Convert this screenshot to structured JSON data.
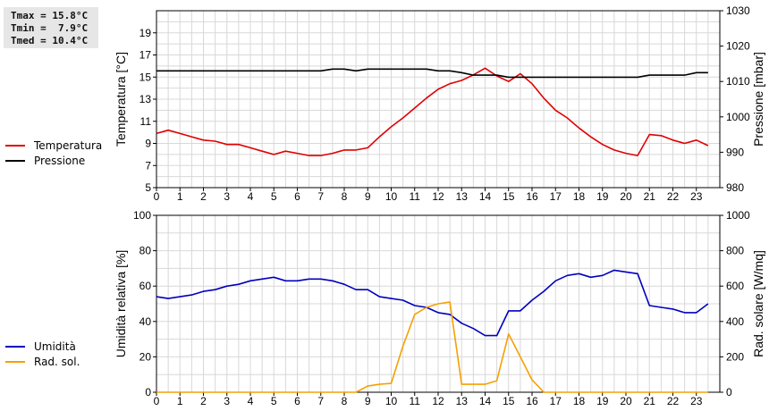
{
  "stats": {
    "tmax": "Tmax = 15.8°C",
    "tmin": "Tmin =  7.9°C",
    "tmed": "Tmed = 10.4°C"
  },
  "colors": {
    "temperature": "#e00000",
    "pressure": "#000000",
    "humidity": "#0000c0",
    "solar": "#f5a000",
    "grid": "#d8d8d8"
  },
  "chart_data": [
    {
      "type": "line",
      "title": "",
      "xlabel": "",
      "xlim": [
        0,
        24
      ],
      "xticks": [
        0,
        1,
        2,
        3,
        4,
        5,
        6,
        7,
        8,
        9,
        10,
        11,
        12,
        13,
        14,
        15,
        16,
        17,
        18,
        19,
        20,
        21,
        22,
        23
      ],
      "ylabel_left": "Temperatura [°C]",
      "ylim_left": [
        5,
        21
      ],
      "yticks_left": [
        5,
        7,
        9,
        11,
        13,
        15,
        17,
        19
      ],
      "ylabel_right": "Pressione [mbar]",
      "ylim_right": [
        980,
        1030
      ],
      "yticks_right": [
        980,
        990,
        1000,
        1010,
        1020,
        1030
      ],
      "grid": true,
      "legend_placement": "left",
      "series": [
        {
          "name": "Temperatura",
          "axis": "left",
          "x": [
            0,
            0.5,
            1,
            1.5,
            2,
            2.5,
            3,
            3.5,
            4,
            4.5,
            5,
            5.5,
            6,
            6.5,
            7,
            7.5,
            8,
            8.5,
            9,
            9.5,
            10,
            10.5,
            11,
            11.5,
            12,
            12.5,
            13,
            13.5,
            14,
            14.5,
            15,
            15.5,
            16,
            16.5,
            17,
            17.5,
            18,
            18.5,
            19,
            19.5,
            20,
            20.5,
            21,
            21.5,
            22,
            22.5,
            23,
            23.5
          ],
          "values": [
            9.9,
            10.2,
            9.9,
            9.6,
            9.3,
            9.2,
            8.9,
            8.9,
            8.6,
            8.3,
            8.0,
            8.3,
            8.1,
            7.9,
            7.9,
            8.1,
            8.4,
            8.4,
            8.6,
            9.6,
            10.5,
            11.3,
            12.2,
            13.1,
            13.9,
            14.4,
            14.7,
            15.2,
            15.8,
            15.1,
            14.6,
            15.3,
            14.4,
            13.1,
            12.0,
            11.3,
            10.4,
            9.6,
            8.9,
            8.4,
            8.1,
            7.9,
            9.8,
            9.7,
            9.3,
            9.0,
            9.3,
            8.8
          ]
        },
        {
          "name": "Pressione",
          "axis": "right",
          "x": [
            0,
            0.5,
            1,
            1.5,
            2,
            2.5,
            3,
            3.5,
            4,
            4.5,
            5,
            5.5,
            6,
            6.5,
            7,
            7.5,
            8,
            8.5,
            9,
            9.5,
            10,
            10.5,
            11,
            11.5,
            12,
            12.5,
            13,
            13.5,
            14,
            14.5,
            15,
            15.5,
            16,
            16.5,
            17,
            17.5,
            18,
            18.5,
            19,
            19.5,
            20,
            20.5,
            21,
            21.5,
            22,
            22.5,
            23,
            23.5
          ],
          "values": [
            1013,
            1013,
            1013,
            1013,
            1013,
            1013,
            1013,
            1013,
            1013,
            1013,
            1013,
            1013,
            1013,
            1013,
            1013,
            1013.5,
            1013.5,
            1013,
            1013.5,
            1013.5,
            1013.5,
            1013.5,
            1013.5,
            1013.5,
            1013,
            1013,
            1012.5,
            1011.8,
            1011.8,
            1011.8,
            1011.2,
            1011.2,
            1011.2,
            1011.2,
            1011.2,
            1011.2,
            1011.2,
            1011.2,
            1011.2,
            1011.2,
            1011.2,
            1011.2,
            1011.8,
            1011.8,
            1011.8,
            1011.8,
            1012.5,
            1012.5
          ]
        }
      ]
    },
    {
      "type": "line",
      "title": "",
      "xlabel": "",
      "xlim": [
        0,
        24
      ],
      "xticks": [
        0,
        1,
        2,
        3,
        4,
        5,
        6,
        7,
        8,
        9,
        10,
        11,
        12,
        13,
        14,
        15,
        16,
        17,
        18,
        19,
        20,
        21,
        22,
        23
      ],
      "ylabel_left": "Umidità relativa [%]",
      "ylim_left": [
        0,
        100
      ],
      "yticks_left": [
        0,
        20,
        40,
        60,
        80,
        100
      ],
      "ylabel_right": "Rad. solare [W/mq]",
      "ylim_right": [
        0,
        1000
      ],
      "yticks_right": [
        0,
        200,
        400,
        600,
        800,
        1000
      ],
      "grid": true,
      "legend_placement": "left",
      "series": [
        {
          "name": "Umidità",
          "axis": "left",
          "x": [
            0,
            0.5,
            1,
            1.5,
            2,
            2.5,
            3,
            3.5,
            4,
            4.5,
            5,
            5.5,
            6,
            6.5,
            7,
            7.5,
            8,
            8.5,
            9,
            9.5,
            10,
            10.5,
            11,
            11.5,
            12,
            12.5,
            13,
            13.5,
            14,
            14.5,
            15,
            15.5,
            16,
            16.5,
            17,
            17.5,
            18,
            18.5,
            19,
            19.5,
            20,
            20.5,
            21,
            21.5,
            22,
            22.5,
            23,
            23.5
          ],
          "values": [
            54,
            53,
            54,
            55,
            57,
            58,
            60,
            61,
            63,
            64,
            65,
            63,
            63,
            64,
            64,
            63,
            61,
            58,
            58,
            54,
            53,
            52,
            49,
            48,
            45,
            44,
            39,
            36,
            32,
            32,
            46,
            46,
            52,
            57,
            63,
            66,
            67,
            65,
            66,
            69,
            68,
            67,
            49,
            48,
            47,
            45,
            45,
            50
          ]
        },
        {
          "name": "Rad. sol.",
          "axis": "right",
          "x": [
            0,
            0.5,
            1,
            1.5,
            2,
            2.5,
            3,
            3.5,
            4,
            4.5,
            5,
            5.5,
            6,
            6.5,
            7,
            7.5,
            8,
            8.5,
            9,
            9.5,
            10,
            10.5,
            11,
            11.5,
            12,
            12.5,
            13,
            13.5,
            14,
            14.5,
            15,
            15.5,
            16,
            16.5,
            17,
            17.5,
            18,
            18.5,
            19,
            19.5,
            20,
            20.5,
            21,
            21.5,
            22,
            22.5,
            23,
            23.5
          ],
          "values": [
            0,
            0,
            0,
            0,
            0,
            0,
            0,
            0,
            0,
            0,
            0,
            0,
            0,
            0,
            0,
            0,
            0,
            0,
            35,
            45,
            50,
            260,
            440,
            480,
            500,
            510,
            45,
            45,
            45,
            65,
            330,
            200,
            70,
            0,
            0,
            0,
            0,
            0,
            0,
            0,
            0,
            0,
            0,
            0,
            0,
            0,
            0,
            0
          ]
        }
      ]
    }
  ]
}
